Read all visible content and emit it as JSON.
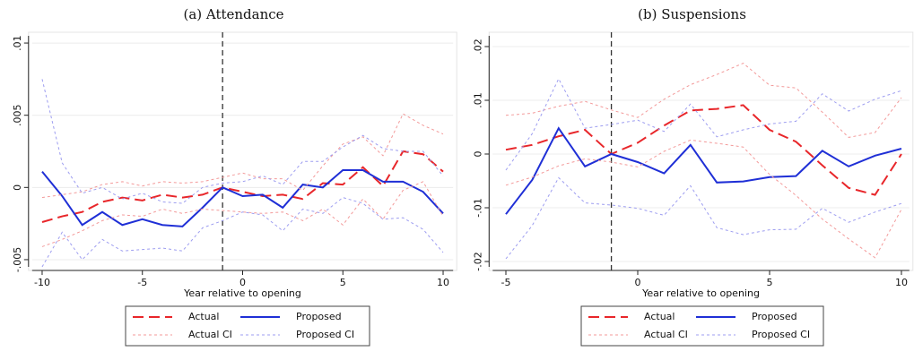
{
  "chart_data": [
    {
      "type": "line",
      "title": "(a) Attendance",
      "xlabel": "Year relative to opening",
      "x": [
        -10,
        -9,
        -8,
        -7,
        -6,
        -5,
        -4,
        -3,
        -2,
        -1,
        0,
        1,
        2,
        3,
        4,
        5,
        6,
        7,
        8,
        9,
        10
      ],
      "xlim": [
        -10.5,
        10.5
      ],
      "xticks": [
        -10,
        -5,
        0,
        5,
        10
      ],
      "ylim": [
        -0.0055,
        0.0105
      ],
      "yticks": [
        {
          "value": 0.01,
          "label": ".01"
        },
        {
          "value": 0.005,
          "label": ".005"
        },
        0,
        {
          "value": -0.005,
          "label": "-.005"
        }
      ],
      "grid": true,
      "vline": -1,
      "legend": "bottom",
      "series": [
        {
          "name": "Actual",
          "color": "#e8262a",
          "style": "dash",
          "values": [
            -0.0024,
            -0.002,
            -0.0017,
            -0.001,
            -0.0007,
            -0.0009,
            -0.0005,
            -0.0007,
            -0.0005,
            0,
            -0.0003,
            -0.0006,
            -0.0005,
            -0.0008,
            0.0003,
            0.0002,
            0.0014,
            0.0001,
            0.0025,
            0.0023,
            0.0011
          ]
        },
        {
          "name": "Proposed",
          "color": "#1f2fd6",
          "style": "solid",
          "values": [
            0.0011,
            -0.0006,
            -0.0026,
            -0.0017,
            -0.0026,
            -0.0022,
            -0.0026,
            -0.0027,
            -0.0014,
            0,
            -0.0006,
            -0.0005,
            -0.0014,
            0.0002,
            0,
            0.0012,
            0.0012,
            0.0004,
            0.0004,
            -0.0003,
            -0.0018
          ]
        },
        {
          "name": "Actual CI",
          "color": "#f39a9a",
          "style": "dot",
          "values": [
            -0.0007,
            -0.0005,
            -0.0003,
            0.0002,
            0.0004,
            0.0001,
            0.0004,
            0.0003,
            0.0004,
            0.0007,
            0.001,
            0.0006,
            0.0006,
            -0.0002,
            0.0015,
            0.003,
            0.0035,
            0.0022,
            0.0051,
            0.0043,
            0.0037
          ]
        },
        {
          "name": "Actual CI",
          "color": "#f39a9a",
          "style": "dot",
          "values": [
            -0.0041,
            -0.0036,
            -0.003,
            -0.0023,
            -0.0019,
            -0.002,
            -0.0015,
            -0.0018,
            -0.0015,
            -0.0016,
            -0.0017,
            -0.0018,
            -0.0017,
            -0.0023,
            -0.0015,
            -0.0026,
            -0.0008,
            -0.0022,
            -0.0002,
            0.0004,
            -0.002
          ]
        },
        {
          "name": "Proposed CI",
          "color": "#9d9df0",
          "style": "dot",
          "values": [
            0.0075,
            0.0017,
            -0.0004,
            0,
            -0.0008,
            -0.0004,
            -0.001,
            -0.0011,
            0,
            0.0003,
            0.0004,
            0.0008,
            0.0002,
            0.0018,
            0.0018,
            0.0028,
            0.0036,
            0.0027,
            0.0025,
            0.0025,
            0.0008
          ]
        },
        {
          "name": "Proposed CI",
          "color": "#9d9df0",
          "style": "dot",
          "values": [
            -0.0055,
            -0.0031,
            -0.005,
            -0.0036,
            -0.0044,
            -0.0043,
            -0.0042,
            -0.0044,
            -0.0028,
            -0.0023,
            -0.0017,
            -0.0019,
            -0.003,
            -0.0015,
            -0.0018,
            -0.0007,
            -0.0011,
            -0.0022,
            -0.0021,
            -0.0029,
            -0.0045
          ]
        }
      ]
    },
    {
      "type": "line",
      "title": "(b) Suspensions",
      "xlabel": "Year relative to opening",
      "x": [
        -5,
        -4,
        -3,
        -2,
        -1,
        0,
        1,
        2,
        3,
        4,
        5,
        6,
        7,
        8,
        9,
        10
      ],
      "xlim": [
        -5.5,
        10.3
      ],
      "xticks": [
        -5,
        0,
        5,
        10
      ],
      "ylim": [
        -0.021,
        0.022
      ],
      "yticks": [
        {
          "value": 0.02,
          "label": ".02"
        },
        {
          "value": 0.01,
          "label": ".01"
        },
        0,
        {
          "value": -0.01,
          "label": "-.01"
        },
        {
          "value": -0.02,
          "label": "-.02"
        }
      ],
      "grid": true,
      "vline": -1,
      "legend": "bottom",
      "series": [
        {
          "name": "Actual",
          "color": "#e8262a",
          "style": "dash",
          "values": [
            0.0008,
            0.0017,
            0.0033,
            0.0045,
            0,
            0.0021,
            0.0053,
            0.0081,
            0.0084,
            0.0091,
            0.0045,
            0.0023,
            -0.0021,
            -0.0063,
            -0.0076,
            0
          ]
        },
        {
          "name": "Proposed",
          "color": "#1f2fd6",
          "style": "solid",
          "values": [
            -0.0112,
            -0.0048,
            0.0048,
            -0.0023,
            0,
            -0.0015,
            -0.0036,
            0.0017,
            -0.0053,
            -0.0051,
            -0.0043,
            -0.0041,
            0.0006,
            -0.0023,
            -0.0003,
            0.001
          ]
        },
        {
          "name": "Actual CI",
          "color": "#f39a9a",
          "style": "dot",
          "values": [
            0.0072,
            0.0076,
            0.0089,
            0.0098,
            0.0082,
            0.0068,
            0.0102,
            0.0129,
            0.0148,
            0.0169,
            0.0128,
            0.0123,
            0.0078,
            0.0031,
            0.004,
            0.0105
          ]
        },
        {
          "name": "Actual CI",
          "color": "#f39a9a",
          "style": "dot",
          "values": [
            -0.0058,
            -0.0043,
            -0.0022,
            -0.0009,
            -0.0015,
            -0.0024,
            0.0005,
            0.0026,
            0.002,
            0.0013,
            -0.0038,
            -0.0077,
            -0.0121,
            -0.0158,
            -0.0193,
            -0.0103
          ]
        },
        {
          "name": "Proposed CI",
          "color": "#9d9df0",
          "style": "dot",
          "values": [
            -0.003,
            0.0038,
            0.014,
            0.0048,
            0.0055,
            0.0063,
            0.0042,
            0.0093,
            0.0032,
            0.0045,
            0.0056,
            0.0061,
            0.0112,
            0.008,
            0.0102,
            0.0118
          ]
        },
        {
          "name": "Proposed CI",
          "color": "#9d9df0",
          "style": "dot",
          "values": [
            -0.0195,
            -0.0133,
            -0.0044,
            -0.0091,
            -0.0095,
            -0.0101,
            -0.0114,
            -0.0059,
            -0.0137,
            -0.015,
            -0.0141,
            -0.014,
            -0.0101,
            -0.0127,
            -0.0108,
            -0.0092
          ]
        }
      ]
    }
  ]
}
